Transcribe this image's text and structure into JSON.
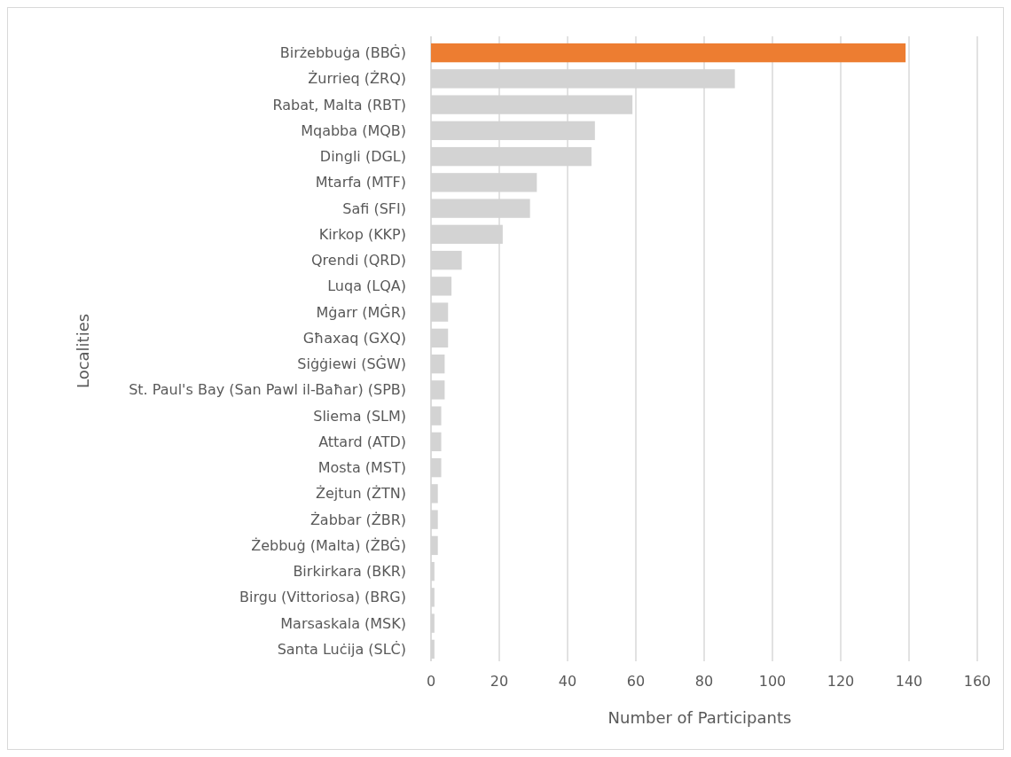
{
  "chart_data": {
    "type": "bar",
    "orientation": "horizontal",
    "xlabel": "Number of Participants",
    "ylabel": "Localities",
    "categories": [
      "Birżebbuġa (BBĠ)",
      "Żurrieq (ŻRQ)",
      "Rabat, Malta (RBT)",
      "Mqabba (MQB)",
      "Dingli (DGL)",
      "Mtarfa (MTF)",
      "Safi (SFI)",
      "Kirkop (KKP)",
      "Qrendi (QRD)",
      "Luqa (LQA)",
      "Mġarr (MĠR)",
      "Għaxaq (GXQ)",
      "Siġġiewi (SĠW)",
      "St. Paul's Bay (San Pawl il-Baħar) (SPB)",
      "Sliema (SLM)",
      "Attard (ATD)",
      "Mosta (MST)",
      "Żejtun (ŻTN)",
      "Żabbar (ŻBR)",
      "Żebbuġ (Malta) (ŻBĠ)",
      "Birkirkara (BKR)",
      "Birgu (Vittoriosa) (BRG)",
      "Marsaskala (MSK)",
      "Santa Luċija (SLĊ)"
    ],
    "values": [
      139,
      89,
      59,
      48,
      47,
      31,
      29,
      21,
      9,
      6,
      5,
      5,
      4,
      4,
      3,
      3,
      3,
      2,
      2,
      2,
      1,
      1,
      1,
      1
    ],
    "colors": [
      "#ed7d31",
      "#d3d3d3",
      "#d3d3d3",
      "#d3d3d3",
      "#d3d3d3",
      "#d3d3d3",
      "#d3d3d3",
      "#d3d3d3",
      "#d3d3d3",
      "#d3d3d3",
      "#d3d3d3",
      "#d3d3d3",
      "#d3d3d3",
      "#d3d3d3",
      "#d3d3d3",
      "#d3d3d3",
      "#d3d3d3",
      "#d3d3d3",
      "#d3d3d3",
      "#d3d3d3",
      "#d3d3d3",
      "#d3d3d3",
      "#d3d3d3",
      "#d3d3d3"
    ],
    "xlim": [
      0,
      160
    ],
    "xticks": [
      0,
      20,
      40,
      60,
      80,
      100,
      120,
      140,
      160
    ],
    "grid": "x"
  }
}
